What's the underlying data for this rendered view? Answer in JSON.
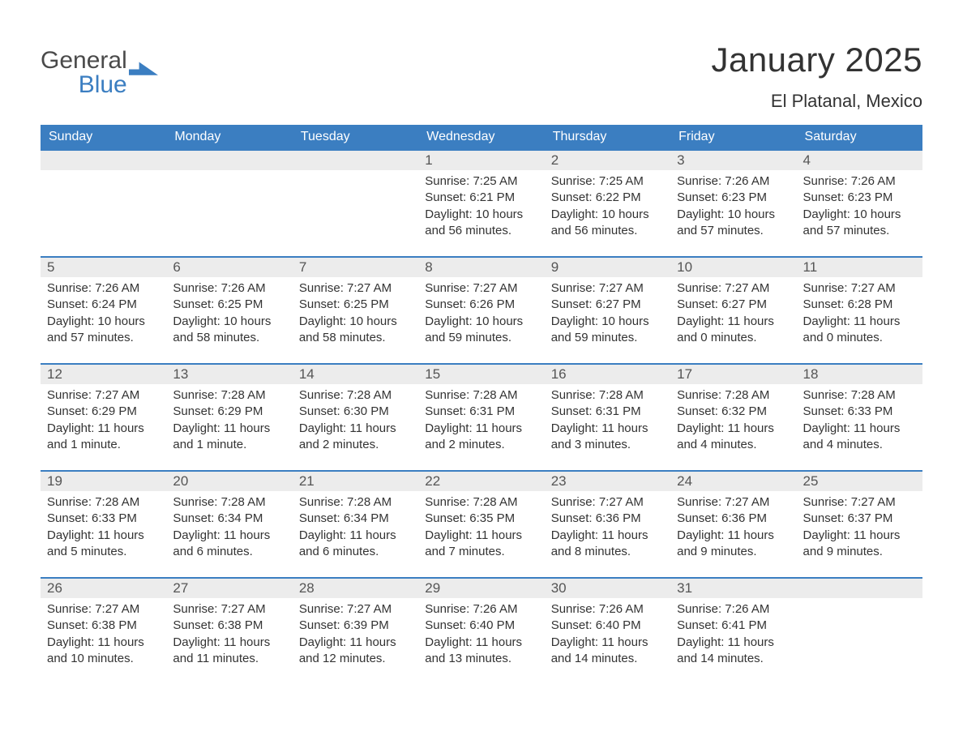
{
  "logo": {
    "word1": "General",
    "word2": "Blue",
    "accent_color": "#3b7ec1"
  },
  "header": {
    "title": "January 2025",
    "location": "El Platanal, Mexico"
  },
  "calendar": {
    "type": "table",
    "header_bg": "#3b7ec1",
    "header_text_color": "#ffffff",
    "daynum_bg": "#ececec",
    "daynum_border_top": "#3b7ec1",
    "body_bg": "#ffffff",
    "text_color": "#333333",
    "font_family": "Arial",
    "header_fontsize": 16,
    "daynum_fontsize": 17,
    "body_fontsize": 15,
    "columns": [
      "Sunday",
      "Monday",
      "Tuesday",
      "Wednesday",
      "Thursday",
      "Friday",
      "Saturday"
    ],
    "weeks": [
      [
        null,
        null,
        null,
        {
          "n": "1",
          "sunrise": "Sunrise: 7:25 AM",
          "sunset": "Sunset: 6:21 PM",
          "d1": "Daylight: 10 hours",
          "d2": "and 56 minutes."
        },
        {
          "n": "2",
          "sunrise": "Sunrise: 7:25 AM",
          "sunset": "Sunset: 6:22 PM",
          "d1": "Daylight: 10 hours",
          "d2": "and 56 minutes."
        },
        {
          "n": "3",
          "sunrise": "Sunrise: 7:26 AM",
          "sunset": "Sunset: 6:23 PM",
          "d1": "Daylight: 10 hours",
          "d2": "and 57 minutes."
        },
        {
          "n": "4",
          "sunrise": "Sunrise: 7:26 AM",
          "sunset": "Sunset: 6:23 PM",
          "d1": "Daylight: 10 hours",
          "d2": "and 57 minutes."
        }
      ],
      [
        {
          "n": "5",
          "sunrise": "Sunrise: 7:26 AM",
          "sunset": "Sunset: 6:24 PM",
          "d1": "Daylight: 10 hours",
          "d2": "and 57 minutes."
        },
        {
          "n": "6",
          "sunrise": "Sunrise: 7:26 AM",
          "sunset": "Sunset: 6:25 PM",
          "d1": "Daylight: 10 hours",
          "d2": "and 58 minutes."
        },
        {
          "n": "7",
          "sunrise": "Sunrise: 7:27 AM",
          "sunset": "Sunset: 6:25 PM",
          "d1": "Daylight: 10 hours",
          "d2": "and 58 minutes."
        },
        {
          "n": "8",
          "sunrise": "Sunrise: 7:27 AM",
          "sunset": "Sunset: 6:26 PM",
          "d1": "Daylight: 10 hours",
          "d2": "and 59 minutes."
        },
        {
          "n": "9",
          "sunrise": "Sunrise: 7:27 AM",
          "sunset": "Sunset: 6:27 PM",
          "d1": "Daylight: 10 hours",
          "d2": "and 59 minutes."
        },
        {
          "n": "10",
          "sunrise": "Sunrise: 7:27 AM",
          "sunset": "Sunset: 6:27 PM",
          "d1": "Daylight: 11 hours",
          "d2": "and 0 minutes."
        },
        {
          "n": "11",
          "sunrise": "Sunrise: 7:27 AM",
          "sunset": "Sunset: 6:28 PM",
          "d1": "Daylight: 11 hours",
          "d2": "and 0 minutes."
        }
      ],
      [
        {
          "n": "12",
          "sunrise": "Sunrise: 7:27 AM",
          "sunset": "Sunset: 6:29 PM",
          "d1": "Daylight: 11 hours",
          "d2": "and 1 minute."
        },
        {
          "n": "13",
          "sunrise": "Sunrise: 7:28 AM",
          "sunset": "Sunset: 6:29 PM",
          "d1": "Daylight: 11 hours",
          "d2": "and 1 minute."
        },
        {
          "n": "14",
          "sunrise": "Sunrise: 7:28 AM",
          "sunset": "Sunset: 6:30 PM",
          "d1": "Daylight: 11 hours",
          "d2": "and 2 minutes."
        },
        {
          "n": "15",
          "sunrise": "Sunrise: 7:28 AM",
          "sunset": "Sunset: 6:31 PM",
          "d1": "Daylight: 11 hours",
          "d2": "and 2 minutes."
        },
        {
          "n": "16",
          "sunrise": "Sunrise: 7:28 AM",
          "sunset": "Sunset: 6:31 PM",
          "d1": "Daylight: 11 hours",
          "d2": "and 3 minutes."
        },
        {
          "n": "17",
          "sunrise": "Sunrise: 7:28 AM",
          "sunset": "Sunset: 6:32 PM",
          "d1": "Daylight: 11 hours",
          "d2": "and 4 minutes."
        },
        {
          "n": "18",
          "sunrise": "Sunrise: 7:28 AM",
          "sunset": "Sunset: 6:33 PM",
          "d1": "Daylight: 11 hours",
          "d2": "and 4 minutes."
        }
      ],
      [
        {
          "n": "19",
          "sunrise": "Sunrise: 7:28 AM",
          "sunset": "Sunset: 6:33 PM",
          "d1": "Daylight: 11 hours",
          "d2": "and 5 minutes."
        },
        {
          "n": "20",
          "sunrise": "Sunrise: 7:28 AM",
          "sunset": "Sunset: 6:34 PM",
          "d1": "Daylight: 11 hours",
          "d2": "and 6 minutes."
        },
        {
          "n": "21",
          "sunrise": "Sunrise: 7:28 AM",
          "sunset": "Sunset: 6:34 PM",
          "d1": "Daylight: 11 hours",
          "d2": "and 6 minutes."
        },
        {
          "n": "22",
          "sunrise": "Sunrise: 7:28 AM",
          "sunset": "Sunset: 6:35 PM",
          "d1": "Daylight: 11 hours",
          "d2": "and 7 minutes."
        },
        {
          "n": "23",
          "sunrise": "Sunrise: 7:27 AM",
          "sunset": "Sunset: 6:36 PM",
          "d1": "Daylight: 11 hours",
          "d2": "and 8 minutes."
        },
        {
          "n": "24",
          "sunrise": "Sunrise: 7:27 AM",
          "sunset": "Sunset: 6:36 PM",
          "d1": "Daylight: 11 hours",
          "d2": "and 9 minutes."
        },
        {
          "n": "25",
          "sunrise": "Sunrise: 7:27 AM",
          "sunset": "Sunset: 6:37 PM",
          "d1": "Daylight: 11 hours",
          "d2": "and 9 minutes."
        }
      ],
      [
        {
          "n": "26",
          "sunrise": "Sunrise: 7:27 AM",
          "sunset": "Sunset: 6:38 PM",
          "d1": "Daylight: 11 hours",
          "d2": "and 10 minutes."
        },
        {
          "n": "27",
          "sunrise": "Sunrise: 7:27 AM",
          "sunset": "Sunset: 6:38 PM",
          "d1": "Daylight: 11 hours",
          "d2": "and 11 minutes."
        },
        {
          "n": "28",
          "sunrise": "Sunrise: 7:27 AM",
          "sunset": "Sunset: 6:39 PM",
          "d1": "Daylight: 11 hours",
          "d2": "and 12 minutes."
        },
        {
          "n": "29",
          "sunrise": "Sunrise: 7:26 AM",
          "sunset": "Sunset: 6:40 PM",
          "d1": "Daylight: 11 hours",
          "d2": "and 13 minutes."
        },
        {
          "n": "30",
          "sunrise": "Sunrise: 7:26 AM",
          "sunset": "Sunset: 6:40 PM",
          "d1": "Daylight: 11 hours",
          "d2": "and 14 minutes."
        },
        {
          "n": "31",
          "sunrise": "Sunrise: 7:26 AM",
          "sunset": "Sunset: 6:41 PM",
          "d1": "Daylight: 11 hours",
          "d2": "and 14 minutes."
        },
        null
      ]
    ]
  }
}
